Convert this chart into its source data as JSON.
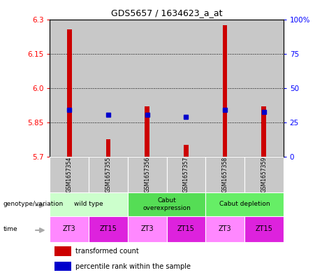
{
  "title": "GDS5657 / 1634623_a_at",
  "samples": [
    "GSM1657354",
    "GSM1657355",
    "GSM1657356",
    "GSM1657357",
    "GSM1657358",
    "GSM1657359"
  ],
  "red_values": [
    6.255,
    5.775,
    5.92,
    5.752,
    6.275,
    5.92
  ],
  "blue_values": [
    5.905,
    5.882,
    5.882,
    5.875,
    5.905,
    5.895
  ],
  "ymin": 5.7,
  "ymax": 6.3,
  "yticks_left": [
    5.7,
    5.85,
    6.0,
    6.15,
    6.3
  ],
  "yticks_right": [
    0,
    25,
    50,
    75,
    100
  ],
  "yticks_right_labels": [
    "0",
    "25",
    "50",
    "75",
    "100%"
  ],
  "genotype_groups": [
    {
      "label": "wild type",
      "start": 0,
      "end": 2,
      "color": "#ccffcc"
    },
    {
      "label": "Cabut\noverexpression",
      "start": 2,
      "end": 4,
      "color": "#55dd55"
    },
    {
      "label": "Cabut depletion",
      "start": 4,
      "end": 6,
      "color": "#66ee66"
    }
  ],
  "time_labels": [
    "ZT3",
    "ZT15",
    "ZT3",
    "ZT15",
    "ZT3",
    "ZT15"
  ],
  "time_color_zt3": "#ff88ff",
  "time_color_zt15": "#dd22dd",
  "bar_color": "#cc0000",
  "dot_color": "#0000cc",
  "legend_red": "transformed count",
  "legend_blue": "percentile rank within the sample",
  "genotype_label": "genotype/variation",
  "time_label": "time",
  "sample_bg_color": "#c8c8c8"
}
